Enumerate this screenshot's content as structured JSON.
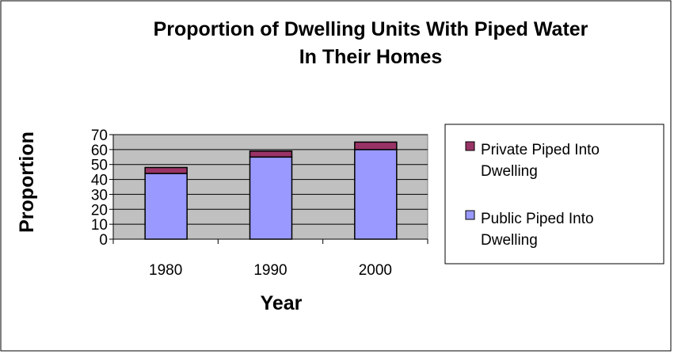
{
  "chart_data": {
    "type": "stacked_bar",
    "title": [
      "Proportion of Dwelling Units With Piped Water",
      "In Their Homes"
    ],
    "x_label": "Year",
    "y_label": "Proportion",
    "categories": [
      "1980",
      "1990",
      "2000"
    ],
    "series": [
      {
        "name": "Public Piped Into Dwelling",
        "color": "#9999ff",
        "values": [
          44,
          55,
          60
        ]
      },
      {
        "name": "Private Piped Into Dwelling",
        "color": "#993366",
        "values": [
          4,
          4,
          5
        ]
      }
    ],
    "ylim": [
      0,
      70
    ],
    "yticks": [
      0,
      10,
      20,
      30,
      40,
      50,
      60,
      70
    ],
    "grid": true,
    "legend": "right"
  }
}
